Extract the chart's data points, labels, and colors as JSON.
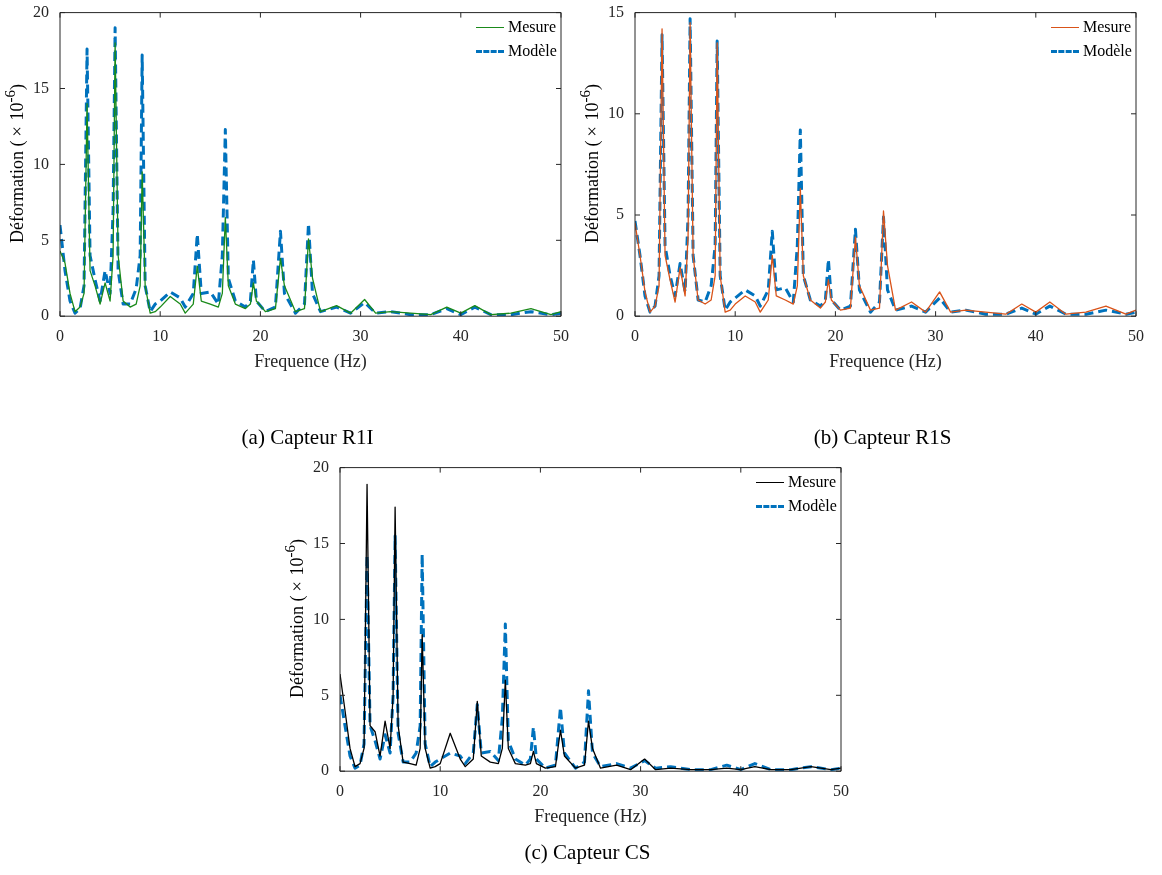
{
  "chart_data": [
    {
      "type": "line",
      "title": "(a) Capteur R1I",
      "xlabel": "Frequence (Hz)",
      "ylabel": "Déformation (×10$^{-6}$)",
      "legend": "top right",
      "xlim": [
        0,
        50
      ],
      "xticks": [
        0,
        10,
        20,
        30,
        40,
        50
      ],
      "ylim": [
        0,
        20
      ],
      "yticks": [
        0,
        5,
        10,
        15,
        20
      ],
      "x": [
        0,
        0.5,
        1,
        1.5,
        2,
        2.4,
        2.7,
        3.0,
        3.5,
        4,
        4.5,
        5,
        5.3,
        5.5,
        5.8,
        6.3,
        7,
        7.6,
        8.0,
        8.2,
        8.5,
        9,
        9.5,
        10,
        11,
        12,
        12.5,
        13.3,
        13.7,
        14.1,
        15,
        15.8,
        16.2,
        16.5,
        16.8,
        17.5,
        18.5,
        19.0,
        19.3,
        19.6,
        20.5,
        21.5,
        22.0,
        22.4,
        23.5,
        24.4,
        24.8,
        25.2,
        26,
        27.6,
        29,
        30.4,
        31.5,
        33,
        35,
        37,
        38.6,
        40,
        41.4,
        43,
        45,
        47,
        49,
        50
      ],
      "series": [
        {
          "name": "Mesure",
          "color": "#1a8a1a",
          "line_style": "solid",
          "values": [
            4.3,
            3.5,
            1.5,
            0.3,
            0.6,
            1.5,
            14,
            3,
            2,
            0.8,
            2.2,
            1,
            4,
            18,
            4,
            1,
            0.6,
            0.8,
            2,
            9.5,
            2,
            0.2,
            0.3,
            0.6,
            1.3,
            0.8,
            0.2,
            0.8,
            3.3,
            1,
            0.8,
            0.6,
            1.5,
            6.5,
            2,
            0.8,
            0.5,
            0.8,
            2.2,
            1,
            0.3,
            0.5,
            3.8,
            2,
            0.3,
            0.5,
            5.1,
            2.5,
            0.3,
            0.7,
            0.2,
            1.1,
            0.2,
            0.3,
            0.2,
            0.1,
            0.6,
            0.2,
            0.7,
            0.1,
            0.2,
            0.5,
            0.1,
            0.3
          ]
        },
        {
          "name": "Modèle",
          "color": "#0072bd",
          "line_style": "dashed",
          "values": [
            6,
            3,
            1,
            0.2,
            0.5,
            2,
            17.6,
            4,
            2.4,
            1,
            3,
            1.5,
            7,
            19,
            3,
            0.8,
            0.8,
            1.8,
            4,
            17.2,
            2,
            0.3,
            0.8,
            1,
            1.6,
            1.2,
            0.6,
            1.5,
            5.4,
            1.5,
            1.6,
            0.8,
            4,
            12.3,
            2.5,
            1,
            0.6,
            1,
            3.7,
            1,
            0.3,
            0.6,
            5.6,
            1.5,
            0.2,
            0.8,
            6.1,
            1.5,
            0.3,
            0.6,
            0.2,
            0.9,
            0.2,
            0.3,
            0.1,
            0.1,
            0.5,
            0.1,
            0.6,
            0.1,
            0.1,
            0.3,
            0.1,
            0.2
          ]
        }
      ]
    },
    {
      "type": "line",
      "title": "(b) Capteur R1S",
      "xlabel": "Frequence (Hz)",
      "ylabel": "Déformation (×10$^{-6}$)",
      "legend": "top right",
      "xlim": [
        0,
        50
      ],
      "xticks": [
        0,
        10,
        20,
        30,
        40,
        50
      ],
      "ylim": [
        0,
        15
      ],
      "yticks": [
        0,
        5,
        10,
        15
      ],
      "x": [
        0,
        0.5,
        1,
        1.5,
        2,
        2.4,
        2.7,
        3.0,
        3.5,
        4,
        4.5,
        5,
        5.3,
        5.5,
        5.8,
        6.3,
        7,
        7.6,
        8.0,
        8.2,
        8.5,
        9,
        9.5,
        10,
        11,
        12,
        12.5,
        13.3,
        13.7,
        14.1,
        15,
        15.8,
        16.2,
        16.5,
        16.8,
        17.5,
        18.5,
        19.0,
        19.3,
        19.6,
        20.5,
        21.5,
        22.0,
        22.4,
        23.5,
        24.4,
        24.8,
        25.2,
        26,
        27.6,
        29,
        30.4,
        31.5,
        33,
        35,
        37,
        38.6,
        40,
        41.4,
        43,
        45,
        47,
        49,
        50
      ],
      "series": [
        {
          "name": "Mesure",
          "color": "#d95319",
          "line_style": "solid",
          "values": [
            4.6,
            3,
            1.2,
            0.2,
            0.5,
            1.5,
            14.2,
            3,
            1.8,
            0.7,
            2.4,
            1,
            4,
            14.5,
            3,
            0.8,
            0.6,
            0.8,
            2,
            13.5,
            2,
            0.2,
            0.3,
            0.6,
            1,
            0.7,
            0.2,
            0.8,
            3,
            1,
            0.8,
            0.6,
            1.5,
            6.3,
            2,
            0.8,
            0.4,
            0.7,
            1.8,
            0.8,
            0.3,
            0.4,
            3.9,
            1.5,
            0.3,
            0.4,
            5.2,
            2.5,
            0.3,
            0.7,
            0.2,
            1.2,
            0.2,
            0.3,
            0.2,
            0.1,
            0.6,
            0.2,
            0.7,
            0.1,
            0.2,
            0.5,
            0.1,
            0.3
          ]
        },
        {
          "name": "Modèle",
          "color": "#0072bd",
          "line_style": "dashed",
          "values": [
            4.7,
            3,
            1,
            0.2,
            0.5,
            2,
            13.9,
            3.5,
            2,
            1,
            2.6,
            1.2,
            5,
            14.7,
            3,
            0.8,
            0.7,
            1.5,
            3.5,
            13.6,
            2,
            0.3,
            0.7,
            0.9,
            1.3,
            1,
            0.5,
            1.3,
            4.2,
            1.3,
            1.4,
            0.7,
            3.5,
            9.2,
            2,
            0.8,
            0.5,
            0.8,
            2.8,
            0.8,
            0.3,
            0.5,
            4.3,
            1.3,
            0.2,
            0.7,
            4.9,
            1.3,
            0.3,
            0.5,
            0.2,
            0.9,
            0.2,
            0.3,
            0.1,
            0.1,
            0.4,
            0.1,
            0.5,
            0.1,
            0.1,
            0.3,
            0.1,
            0.2
          ]
        }
      ]
    },
    {
      "type": "line",
      "title": "(c) Capteur CS",
      "xlabel": "Frequence (Hz)",
      "ylabel": "Déformation (×10$^{-6}$)",
      "legend": "top right",
      "xlim": [
        0,
        50
      ],
      "xticks": [
        0,
        10,
        20,
        30,
        40,
        50
      ],
      "ylim": [
        0,
        20
      ],
      "yticks": [
        0,
        5,
        10,
        15,
        20
      ],
      "x": [
        0,
        0.5,
        1,
        1.5,
        2,
        2.4,
        2.7,
        3.0,
        3.5,
        4,
        4.5,
        5,
        5.3,
        5.5,
        5.8,
        6.3,
        7,
        7.6,
        8.0,
        8.2,
        8.5,
        9,
        9.5,
        10,
        11,
        12,
        12.5,
        13.3,
        13.7,
        14.1,
        15,
        15.8,
        16.2,
        16.5,
        16.8,
        17.5,
        18.5,
        19.0,
        19.3,
        19.6,
        20.5,
        21.5,
        22.0,
        22.4,
        23.5,
        24.4,
        24.8,
        25.2,
        26,
        27.6,
        29,
        30.4,
        31.5,
        33,
        35,
        37,
        38.6,
        40,
        41.4,
        43,
        45,
        47,
        49,
        50
      ],
      "series": [
        {
          "name": "Mesure",
          "color": "#000000",
          "line_style": "solid",
          "values": [
            6.4,
            4,
            1.5,
            0.3,
            0.5,
            1.5,
            18.9,
            3,
            2.6,
            1,
            3.3,
            1.5,
            5,
            17.4,
            3,
            0.6,
            0.5,
            0.4,
            1.5,
            9,
            1.5,
            0.2,
            0.3,
            0.5,
            2.5,
            0.8,
            0.3,
            0.8,
            4.6,
            1,
            0.6,
            0.5,
            1.5,
            6,
            1.5,
            0.5,
            0.4,
            0.5,
            1.3,
            0.5,
            0.2,
            0.3,
            2.7,
            1,
            0.2,
            0.4,
            3.3,
            1.5,
            0.2,
            0.4,
            0.1,
            0.8,
            0.1,
            0.2,
            0.1,
            0.1,
            0.2,
            0.1,
            0.3,
            0.1,
            0.1,
            0.3,
            0.1,
            0.2
          ]
        },
        {
          "name": "Modèle",
          "color": "#0072bd",
          "line_style": "dashed",
          "values": [
            5,
            3,
            1,
            0.2,
            0.4,
            1.8,
            14.2,
            3,
            2,
            0.8,
            2.4,
            1.2,
            5,
            15.5,
            2.5,
            0.6,
            0.6,
            1.2,
            3,
            14.3,
            1.8,
            0.3,
            0.6,
            0.8,
            1.2,
            1,
            0.5,
            1.2,
            4.4,
            1.2,
            1.3,
            0.7,
            3.5,
            9.7,
            2,
            0.8,
            0.4,
            0.8,
            2.9,
            0.8,
            0.2,
            0.4,
            4.2,
            1.2,
            0.2,
            0.6,
            5.3,
            1.2,
            0.3,
            0.5,
            0.2,
            0.7,
            0.2,
            0.3,
            0.1,
            0.1,
            0.4,
            0.1,
            0.5,
            0.1,
            0.1,
            0.3,
            0.1,
            0.2
          ]
        }
      ]
    }
  ]
}
